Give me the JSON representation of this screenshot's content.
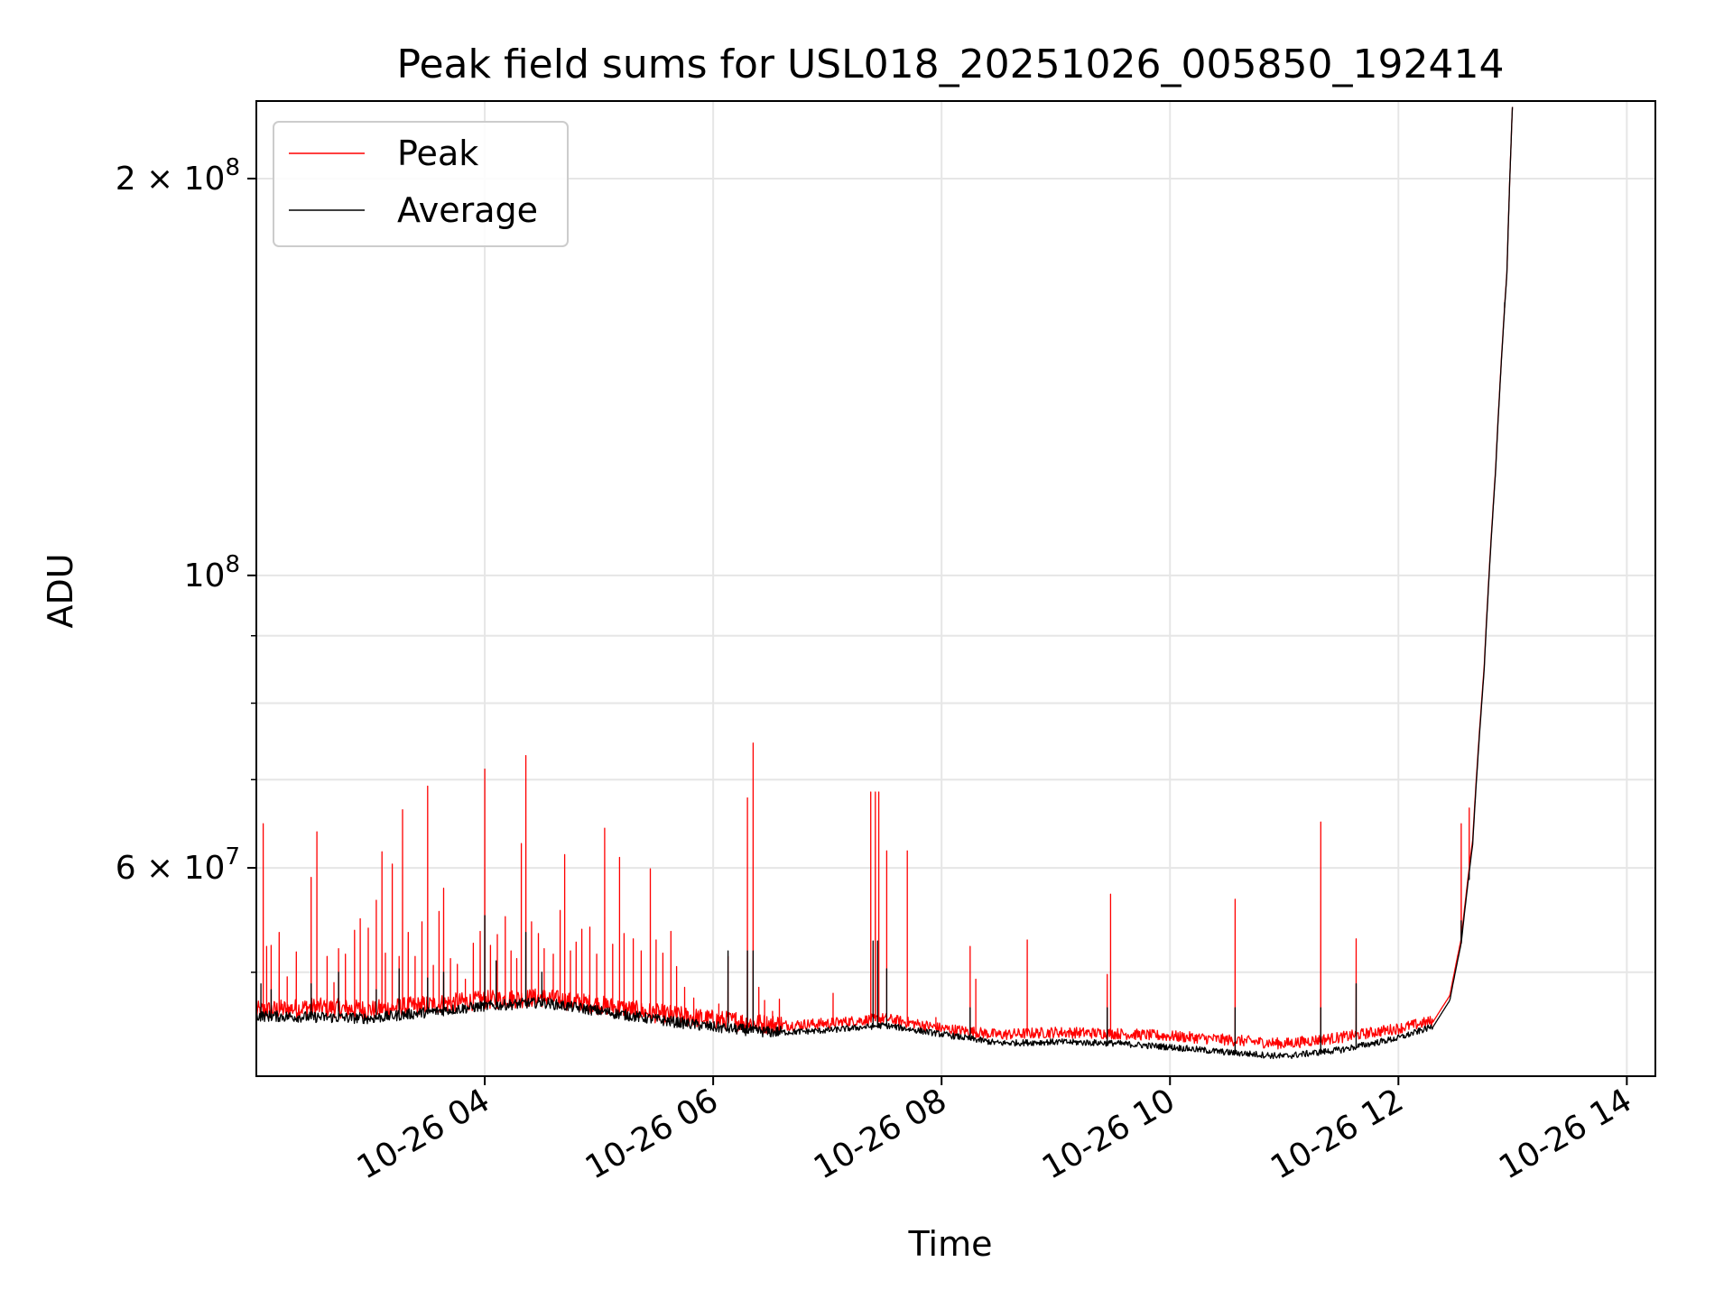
{
  "chart_data": {
    "type": "line",
    "title": "Peak field sums for USL018_20251026_005850_192414",
    "xlabel": "Time",
    "ylabel": "ADU",
    "yscale": "log",
    "xlim": [
      2.0,
      14.25
    ],
    "ylim": [
      41700000,
      229000000
    ],
    "grid": true,
    "legend": {
      "placement": "top-left",
      "entries": [
        "Peak",
        "Average"
      ]
    },
    "x_ticks": [
      {
        "value": 4,
        "label": "10-26 04"
      },
      {
        "value": 6,
        "label": "10-26 06"
      },
      {
        "value": 8,
        "label": "10-26 08"
      },
      {
        "value": 10,
        "label": "10-26 10"
      },
      {
        "value": 12,
        "label": "10-26 12"
      },
      {
        "value": 14,
        "label": "10-26 14"
      }
    ],
    "y_major_ticks": [
      {
        "value": 200000000,
        "mantissa": "2 × 10",
        "exp": "8"
      },
      {
        "value": 100000000,
        "mantissa": "10",
        "exp": "8"
      },
      {
        "value": 60000000,
        "mantissa": "6 × 10",
        "exp": "7"
      }
    ],
    "y_minor_gridlines": [
      50000000,
      70000000,
      80000000,
      90000000
    ],
    "series": [
      {
        "name": "Peak",
        "color": "#ff0000",
        "baseline": [
          [
            2.0,
            46.5
          ],
          [
            2.5,
            46.8
          ],
          [
            3.0,
            46.6
          ],
          [
            3.5,
            47.0
          ],
          [
            4.0,
            47.4
          ],
          [
            4.5,
            47.6
          ],
          [
            5.0,
            47.0
          ],
          [
            5.5,
            46.3
          ],
          [
            6.0,
            45.8
          ],
          [
            6.5,
            45.4
          ],
          [
            7.0,
            45.6
          ],
          [
            7.5,
            46.0
          ],
          [
            8.0,
            45.2
          ],
          [
            8.5,
            44.7
          ],
          [
            9.0,
            44.9
          ],
          [
            9.5,
            44.8
          ],
          [
            10.0,
            44.6
          ],
          [
            10.5,
            44.3
          ],
          [
            11.0,
            44.0
          ],
          [
            11.5,
            44.5
          ],
          [
            12.0,
            45.2
          ],
          [
            12.3,
            45.8
          ],
          [
            12.45,
            48.0
          ],
          [
            12.55,
            53.0
          ],
          [
            12.65,
            63.0
          ],
          [
            12.75,
            85.0
          ],
          [
            12.85,
            120.0
          ],
          [
            12.95,
            170.0
          ],
          [
            13.0,
            229.0
          ]
        ],
        "spikes": [
          [
            2.06,
            64.8
          ],
          [
            2.09,
            52.3
          ],
          [
            2.13,
            52.4
          ],
          [
            2.2,
            53.6
          ],
          [
            2.27,
            49.6
          ],
          [
            2.35,
            51.8
          ],
          [
            2.44,
            47.5
          ],
          [
            2.48,
            59.0
          ],
          [
            2.53,
            63.9
          ],
          [
            2.62,
            51.4
          ],
          [
            2.68,
            49.1
          ],
          [
            2.72,
            52.1
          ],
          [
            2.78,
            51.6
          ],
          [
            2.86,
            53.8
          ],
          [
            2.91,
            54.9
          ],
          [
            2.98,
            54.0
          ],
          [
            3.05,
            56.7
          ],
          [
            3.1,
            61.7
          ],
          [
            3.13,
            51.7
          ],
          [
            3.19,
            60.4
          ],
          [
            3.25,
            51.4
          ],
          [
            3.28,
            66.4
          ],
          [
            3.33,
            53.6
          ],
          [
            3.39,
            51.4
          ],
          [
            3.45,
            54.6
          ],
          [
            3.5,
            69.2
          ],
          [
            3.55,
            50.6
          ],
          [
            3.6,
            55.6
          ],
          [
            3.64,
            57.9
          ],
          [
            3.7,
            51.2
          ],
          [
            3.76,
            50.7
          ],
          [
            3.83,
            49.4
          ],
          [
            3.9,
            52.6
          ],
          [
            3.96,
            53.7
          ],
          [
            4.0,
            71.3
          ],
          [
            4.05,
            52.4
          ],
          [
            4.11,
            53.4
          ],
          [
            4.18,
            55.1
          ],
          [
            4.23,
            51.9
          ],
          [
            4.28,
            51.2
          ],
          [
            4.32,
            62.6
          ],
          [
            4.36,
            73.0
          ],
          [
            4.41,
            54.6
          ],
          [
            4.47,
            53.5
          ],
          [
            4.52,
            52.1
          ],
          [
            4.6,
            51.6
          ],
          [
            4.66,
            55.7
          ],
          [
            4.7,
            61.4
          ],
          [
            4.75,
            51.9
          ],
          [
            4.8,
            52.7
          ],
          [
            4.85,
            53.9
          ],
          [
            4.92,
            54.1
          ],
          [
            4.98,
            51.6
          ],
          [
            5.05,
            64.3
          ],
          [
            5.12,
            52.5
          ],
          [
            5.18,
            61.1
          ],
          [
            5.22,
            53.5
          ],
          [
            5.3,
            53.0
          ],
          [
            5.37,
            51.9
          ],
          [
            5.45,
            59.9
          ],
          [
            5.5,
            52.9
          ],
          [
            5.56,
            51.7
          ],
          [
            5.63,
            53.7
          ],
          [
            5.68,
            50.5
          ],
          [
            5.75,
            48.7
          ],
          [
            5.83,
            47.8
          ],
          [
            5.9,
            46.4
          ],
          [
            6.0,
            45.9
          ],
          [
            6.05,
            47.3
          ],
          [
            6.13,
            51.4
          ],
          [
            6.2,
            46.6
          ],
          [
            6.3,
            67.8
          ],
          [
            6.35,
            74.6
          ],
          [
            6.4,
            48.7
          ],
          [
            6.45,
            47.6
          ],
          [
            6.52,
            46.7
          ],
          [
            6.58,
            47.7
          ],
          [
            7.05,
            48.2
          ],
          [
            7.38,
            68.5
          ],
          [
            7.42,
            68.5
          ],
          [
            7.45,
            68.5
          ],
          [
            7.52,
            61.8
          ],
          [
            7.7,
            61.8
          ],
          [
            7.95,
            46.2
          ],
          [
            8.25,
            52.3
          ],
          [
            8.3,
            49.4
          ],
          [
            8.75,
            52.9
          ],
          [
            9.45,
            49.8
          ],
          [
            9.48,
            57.3
          ],
          [
            10.57,
            56.8
          ],
          [
            11.32,
            65.0
          ],
          [
            11.63,
            53.0
          ],
          [
            12.55,
            64.8
          ],
          [
            12.62,
            66.6
          ]
        ]
      },
      {
        "name": "Average",
        "color": "#000000",
        "baseline": [
          [
            2.0,
            46.2
          ],
          [
            2.5,
            46.1
          ],
          [
            3.0,
            46.0
          ],
          [
            3.5,
            46.5
          ],
          [
            4.0,
            47.0
          ],
          [
            4.5,
            47.3
          ],
          [
            5.0,
            46.6
          ],
          [
            5.5,
            45.9
          ],
          [
            6.0,
            45.3
          ],
          [
            6.5,
            44.9
          ],
          [
            7.0,
            45.1
          ],
          [
            7.5,
            45.5
          ],
          [
            8.0,
            44.8
          ],
          [
            8.5,
            44.1
          ],
          [
            9.0,
            44.2
          ],
          [
            9.5,
            44.1
          ],
          [
            10.0,
            43.8
          ],
          [
            10.5,
            43.4
          ],
          [
            11.0,
            43.1
          ],
          [
            11.5,
            43.6
          ],
          [
            12.0,
            44.5
          ],
          [
            12.3,
            45.4
          ],
          [
            12.45,
            47.6
          ],
          [
            12.55,
            52.6
          ],
          [
            12.65,
            62.5
          ],
          [
            12.75,
            84.5
          ],
          [
            12.85,
            119.5
          ],
          [
            12.95,
            169.5
          ],
          [
            13.0,
            229.0
          ]
        ],
        "spikes": [
          [
            2.04,
            49.0
          ],
          [
            2.13,
            48.5
          ],
          [
            2.48,
            49.0
          ],
          [
            2.72,
            50.0
          ],
          [
            3.05,
            48.5
          ],
          [
            3.25,
            50.3
          ],
          [
            3.5,
            49.5
          ],
          [
            3.64,
            50.0
          ],
          [
            4.0,
            55.2
          ],
          [
            4.1,
            51.0
          ],
          [
            4.36,
            53.6
          ],
          [
            4.5,
            50.0
          ],
          [
            6.13,
            51.9
          ],
          [
            6.3,
            51.9
          ],
          [
            6.35,
            51.9
          ],
          [
            7.4,
            52.8
          ],
          [
            7.44,
            52.8
          ],
          [
            7.52,
            50.3
          ],
          [
            8.25,
            47.0
          ],
          [
            9.45,
            47.0
          ],
          [
            10.57,
            47.0
          ],
          [
            11.32,
            47.0
          ],
          [
            11.63,
            49.0
          ],
          [
            12.55,
            54.7
          ],
          [
            12.62,
            58.8
          ],
          [
            12.93,
            161.0
          ]
        ]
      }
    ]
  }
}
